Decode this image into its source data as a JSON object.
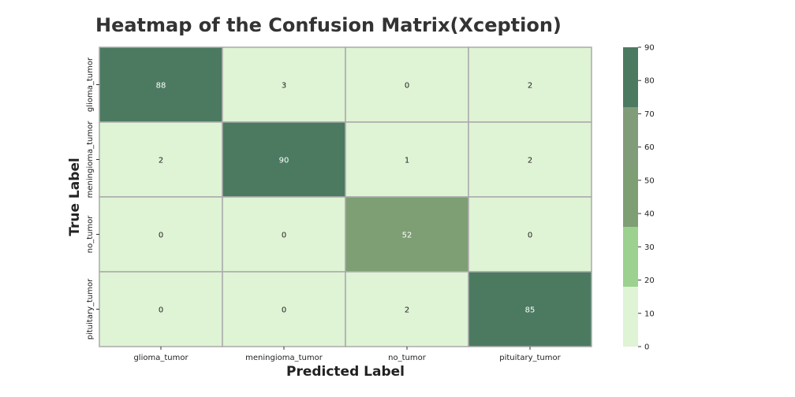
{
  "chart_data": {
    "type": "heatmap",
    "title": "Heatmap of the Confusion Matrix(Xception)",
    "xlabel": "Predicted Label",
    "ylabel": "True Label",
    "x_categories": [
      "glioma_tumor",
      "meningioma_tumor",
      "no_tumor",
      "pituitary_tumor"
    ],
    "y_categories": [
      "glioma_tumor",
      "meningioma_tumor",
      "no_tumor",
      "pituitary_tumor"
    ],
    "values": [
      [
        88,
        3,
        0,
        2
      ],
      [
        2,
        90,
        1,
        2
      ],
      [
        0,
        0,
        52,
        0
      ],
      [
        0,
        0,
        2,
        85
      ]
    ],
    "colorbar": {
      "range": [
        0,
        90
      ],
      "ticks": [
        0,
        10,
        20,
        30,
        40,
        50,
        60,
        70,
        80,
        90
      ],
      "bands": [
        {
          "from": 0,
          "to": 18,
          "color": "#dff3d5"
        },
        {
          "from": 18,
          "to": 36,
          "color": "#9cd18f"
        },
        {
          "from": 36,
          "to": 54,
          "color": "#7e9f74"
        },
        {
          "from": 54,
          "to": 72,
          "color": "#809c79"
        },
        {
          "from": 72,
          "to": 90,
          "color": "#4b7a61"
        }
      ]
    },
    "colors": {
      "gridline": "#aaaaaa",
      "light_text": "#ffffff",
      "dark_text": "#222222"
    }
  }
}
